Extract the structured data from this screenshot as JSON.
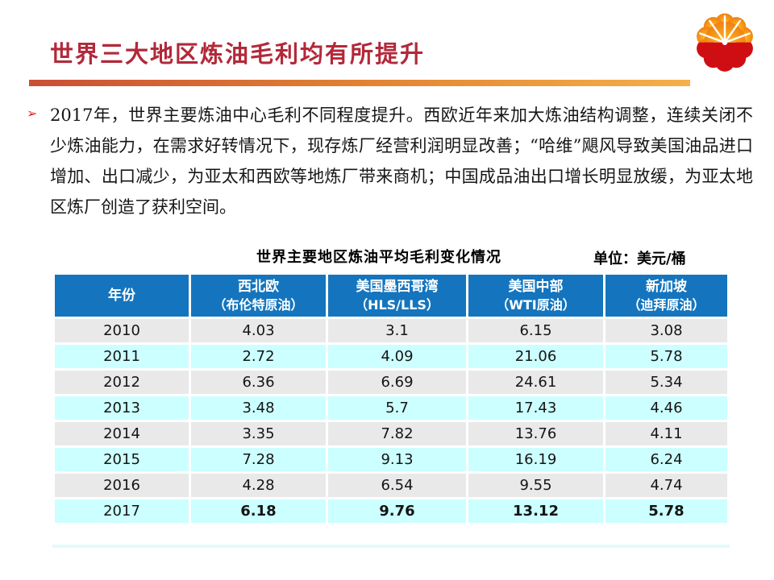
{
  "header": {
    "title": "世界三大地区炼油毛利均有所提升"
  },
  "paragraph": {
    "bullet": "➢",
    "text": "2017年，世界主要炼油中心毛利不同程度提升。西欧近年来加大炼油结构调整，连续关闭不少炼油能力，在需求好转情况下，现存炼厂经营利润明显改善；“哈维”飓风导致美国油品进口增加、出口减少，为亚太和西欧等地炼厂带来商机；中国成品油出口增长明显放缓，为亚太地区炼厂创造了获利空间。"
  },
  "table": {
    "title": "世界主要地区炼油平均毛利变化情况",
    "unit": "单位：美元/桶",
    "columns": [
      {
        "name": "年份",
        "sub": ""
      },
      {
        "name": "西北欧",
        "sub": "（布伦特原油）"
      },
      {
        "name": "美国墨西哥湾",
        "sub": "（HLS/LLS）"
      },
      {
        "name": "美国中部",
        "sub": "（WTI原油）"
      },
      {
        "name": "新加坡",
        "sub": "（迪拜原油）"
      }
    ],
    "rows": [
      {
        "year": "2010",
        "values": [
          "4.03",
          "3.1",
          "6.15",
          "3.08"
        ],
        "highlight": false
      },
      {
        "year": "2011",
        "values": [
          "2.72",
          "4.09",
          "21.06",
          "5.78"
        ],
        "highlight": false
      },
      {
        "year": "2012",
        "values": [
          "6.36",
          "6.69",
          "24.61",
          "5.34"
        ],
        "highlight": false
      },
      {
        "year": "2013",
        "values": [
          "3.48",
          "5.7",
          "17.43",
          "4.46"
        ],
        "highlight": false
      },
      {
        "year": "2014",
        "values": [
          "3.35",
          "7.82",
          "13.76",
          "4.11"
        ],
        "highlight": false
      },
      {
        "year": "2015",
        "values": [
          "7.28",
          "9.13",
          "16.19",
          "6.24"
        ],
        "highlight": false
      },
      {
        "year": "2016",
        "values": [
          "4.28",
          "6.54",
          "9.55",
          "4.74"
        ],
        "highlight": false
      },
      {
        "year": "2017",
        "values": [
          "6.18",
          "9.76",
          "13.12",
          "5.78"
        ],
        "highlight": true
      }
    ]
  },
  "icons": {
    "logo": "petrochina-logo"
  },
  "colors": {
    "title_red": "#B2293A",
    "bullet_red": "#E02020",
    "header_blue": "#1475BE",
    "row_gray": "#E9E9E9",
    "row_cyan": "#CCFFFF",
    "highlight_red": "#FF0000",
    "bar_left": "#C94F35",
    "bar_mid": "#E18232",
    "bar_right": "#F5B04A",
    "logo_orange": "#F79A1E",
    "logo_red": "#CF0E13"
  }
}
